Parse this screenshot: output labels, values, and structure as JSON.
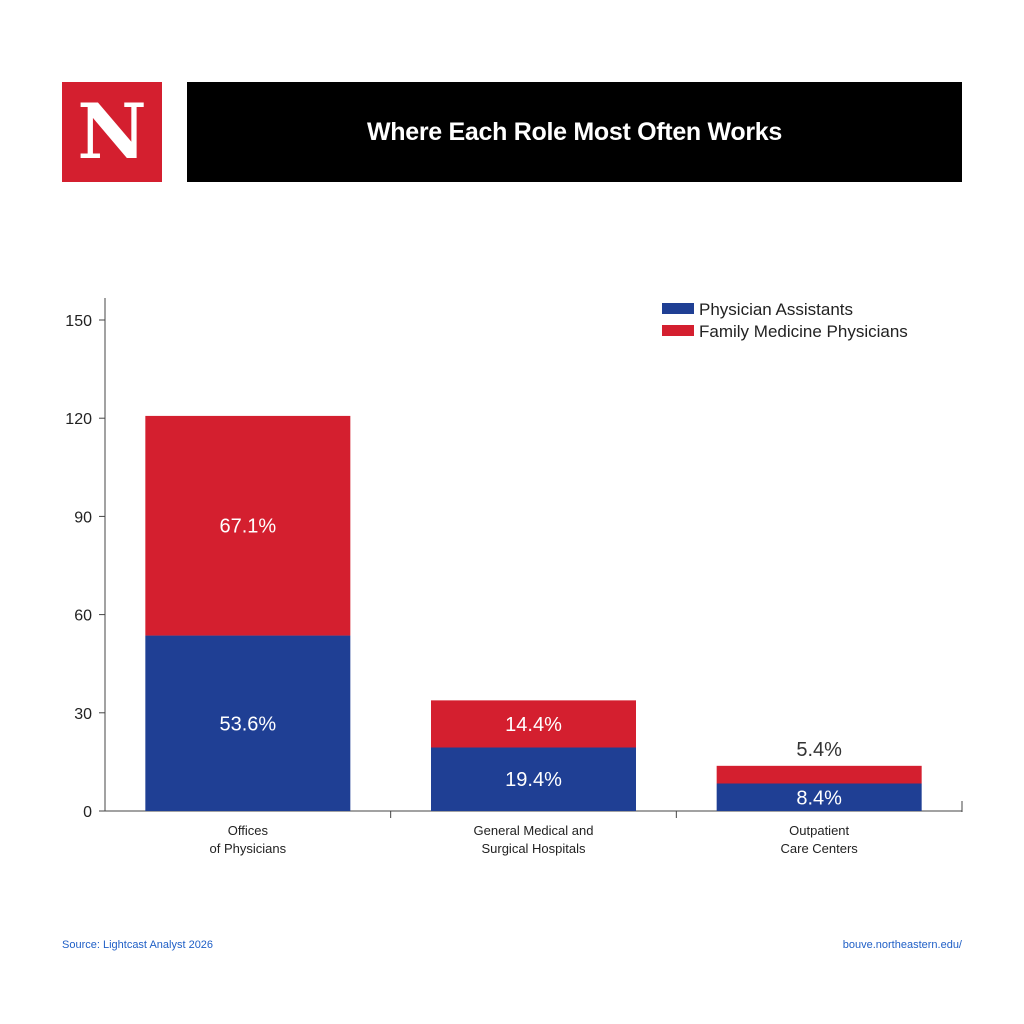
{
  "logo": {
    "letter": "N"
  },
  "header": {
    "title": "Where Each Role Most Often Works"
  },
  "footer": {
    "source": "Source: Lightcast Analyst 2026",
    "url": "bouve.northeastern.edu/"
  },
  "colors": {
    "physician_assistants": "#1f3f94",
    "family_medicine": "#d41f2f",
    "axis": "#444444",
    "text": "#222222"
  },
  "chart_data": {
    "type": "bar",
    "stacked": true,
    "categories": [
      [
        "Offices",
        "of Physicians"
      ],
      [
        "General Medical and",
        "Surgical Hospitals"
      ],
      [
        "Outpatient",
        "Care Centers"
      ]
    ],
    "series": [
      {
        "name": "Physician Assistants",
        "color": "#1f3f94",
        "values": [
          53.6,
          19.4,
          8.4
        ],
        "labels": [
          "53.6%",
          "19.4%",
          "8.4%"
        ]
      },
      {
        "name": "Family Medicine Physicians",
        "color": "#d41f2f",
        "values": [
          67.1,
          14.4,
          5.4
        ],
        "labels": [
          "67.1%",
          "14.4%",
          "5.4%"
        ]
      }
    ],
    "ylim": [
      0,
      150
    ],
    "yticks": [
      0,
      30,
      60,
      90,
      120,
      150
    ],
    "grid": false,
    "legend_position": "top-right",
    "xlabel": "",
    "ylabel": ""
  }
}
